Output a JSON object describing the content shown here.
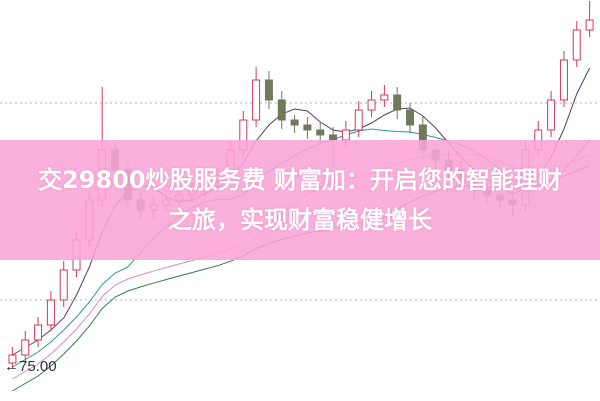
{
  "headline": "交29800炒股服务费 财富加：开启您的智能理财之旅，实现财富稳健增长",
  "price_marker": {
    "arrow": "←",
    "value": "75.00"
  },
  "colors": {
    "up": "#d43a55",
    "down": "#6f7a5c",
    "banner": "#f9a5d7",
    "ma": [
      "#5a3a6a",
      "#2a9a9a",
      "#d88ad8",
      "#3a7a4a"
    ]
  },
  "chart_data": {
    "type": "candlestick",
    "title": "",
    "xlabel": "",
    "ylabel": "",
    "ylim": [
      73.3,
      93.35
    ],
    "grid": "dotted horizontal",
    "annotations": [
      "75.00"
    ],
    "moving_averages": [
      5,
      10,
      20,
      30
    ],
    "candles_ohlc": [
      [
        75.2,
        76.0,
        74.9,
        75.6
      ],
      [
        75.6,
        76.8,
        75.2,
        76.35
      ],
      [
        76.35,
        77.5,
        76.0,
        77.1
      ],
      [
        77.1,
        78.8,
        76.8,
        78.35
      ],
      [
        78.35,
        80.3,
        78.0,
        79.85
      ],
      [
        79.85,
        81.8,
        79.5,
        81.35
      ],
      [
        81.35,
        83.8,
        81.0,
        83.35
      ],
      [
        83.35,
        89.0,
        83.0,
        85.85
      ],
      [
        85.85,
        86.3,
        84.4,
        84.85
      ],
      [
        84.85,
        85.2,
        82.9,
        83.35
      ],
      [
        83.35,
        83.8,
        82.4,
        82.85
      ],
      [
        82.85,
        83.5,
        82.4,
        83.1
      ],
      [
        83.1,
        83.8,
        82.7,
        83.35
      ],
      [
        83.35,
        84.0,
        83.0,
        83.6
      ],
      [
        83.6,
        84.3,
        83.2,
        83.85
      ],
      [
        83.85,
        84.8,
        83.5,
        84.35
      ],
      [
        84.35,
        85.0,
        84.0,
        84.6
      ],
      [
        84.6,
        86.3,
        84.2,
        85.85
      ],
      [
        85.85,
        87.8,
        85.5,
        87.35
      ],
      [
        87.35,
        90.0,
        87.0,
        89.35
      ],
      [
        89.35,
        89.8,
        87.9,
        88.35
      ],
      [
        88.35,
        88.8,
        86.9,
        87.35
      ],
      [
        87.35,
        87.6,
        86.7,
        87.1
      ],
      [
        87.1,
        87.5,
        86.4,
        86.85
      ],
      [
        86.85,
        87.2,
        86.2,
        86.6
      ],
      [
        86.6,
        87.0,
        85.0,
        86.35
      ],
      [
        86.35,
        87.3,
        86.0,
        86.85
      ],
      [
        86.85,
        88.3,
        86.5,
        87.85
      ],
      [
        87.85,
        88.8,
        87.5,
        88.35
      ],
      [
        88.35,
        89.1,
        88.0,
        88.6
      ],
      [
        88.6,
        89.0,
        87.4,
        87.85
      ],
      [
        87.85,
        88.2,
        86.7,
        87.1
      ],
      [
        87.1,
        87.5,
        85.4,
        85.85
      ],
      [
        85.85,
        86.2,
        84.9,
        85.35
      ],
      [
        85.35,
        85.8,
        84.4,
        84.85
      ],
      [
        84.85,
        85.3,
        83.9,
        84.35
      ],
      [
        84.35,
        84.8,
        83.4,
        83.85
      ],
      [
        83.85,
        84.2,
        83.2,
        83.6
      ],
      [
        83.6,
        84.0,
        82.9,
        83.35
      ],
      [
        83.35,
        83.8,
        82.6,
        83.1
      ],
      [
        83.1,
        86.3,
        82.8,
        85.85
      ],
      [
        85.85,
        87.3,
        85.5,
        86.85
      ],
      [
        86.85,
        88.8,
        86.5,
        88.35
      ],
      [
        88.35,
        90.8,
        88.0,
        90.35
      ],
      [
        90.35,
        92.3,
        90.0,
        91.85
      ],
      [
        91.85,
        93.3,
        91.5,
        92.35
      ]
    ]
  }
}
